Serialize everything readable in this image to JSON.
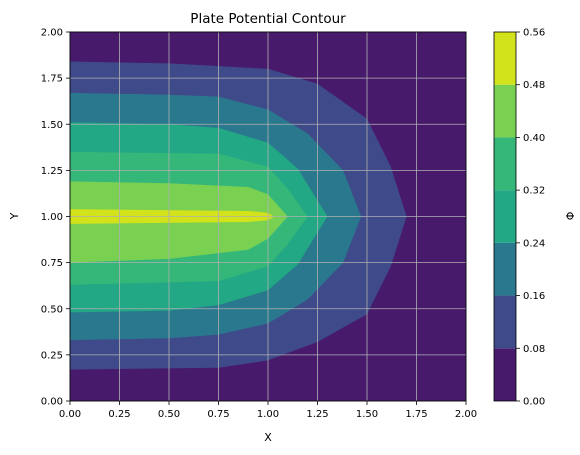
{
  "chart_data": {
    "type": "contour",
    "title": "Plate Potential Contour",
    "xlabel": "X",
    "ylabel": "Y",
    "colorbar_label": "Φ",
    "xlim": [
      0,
      2
    ],
    "ylim": [
      0,
      2
    ],
    "x_ticks": [
      "0.00",
      "0.25",
      "0.50",
      "0.75",
      "1.00",
      "1.25",
      "1.50",
      "1.75",
      "2.00"
    ],
    "y_ticks": [
      "0.00",
      "0.25",
      "0.50",
      "0.75",
      "1.00",
      "1.25",
      "1.50",
      "1.75",
      "2.00"
    ],
    "levels": [
      0.0,
      0.08,
      0.16,
      0.24,
      0.32,
      0.4,
      0.48,
      0.56
    ],
    "level_labels": [
      "0.00",
      "0.08",
      "0.16",
      "0.24",
      "0.32",
      "0.40",
      "0.48",
      "0.56"
    ],
    "level_colors": [
      "#440154",
      "#443983",
      "#31688e",
      "#21918c",
      "#35b779",
      "#90d743",
      "#fde725"
    ],
    "level_colors_rendered": [
      "#481a6c",
      "#3e4a89",
      "#2a788e",
      "#22a884",
      "#35b779",
      "#7ad151",
      "#d2e21b"
    ],
    "grid": true,
    "contour_region_outer_extent": [
      {
        "level": 0.08,
        "x_at_center": 1.7,
        "y_range": [
          0.17,
          1.83
        ]
      },
      {
        "level": 0.16,
        "x_at_center": 1.47,
        "y_range": [
          0.33,
          1.67
        ]
      },
      {
        "level": 0.24,
        "x_at_center": 1.3,
        "y_range": [
          0.47,
          1.5
        ]
      },
      {
        "level": 0.32,
        "x_at_center": 1.2,
        "y_range": [
          0.63,
          1.35
        ]
      },
      {
        "level": 0.4,
        "x_at_center": 1.1,
        "y_range": [
          0.75,
          1.18
        ]
      },
      {
        "level": 0.48,
        "x_at_center": 1.03,
        "y_range": [
          0.96,
          1.04
        ]
      }
    ]
  }
}
